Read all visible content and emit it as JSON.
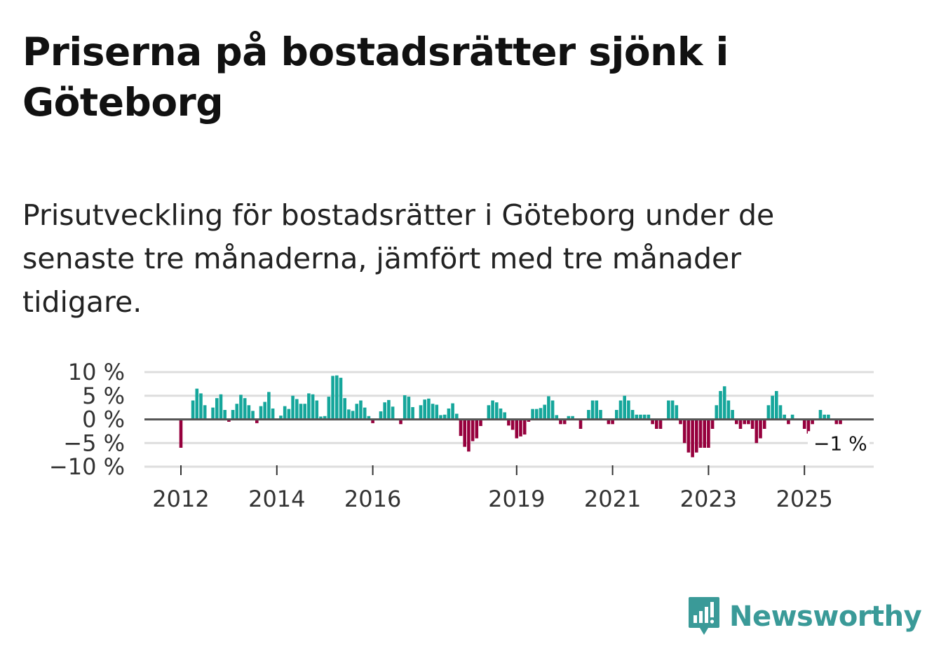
{
  "header": {
    "title": "Priserna på bostadsrätter sjönk i Göteborg",
    "subtitle": "Prisutveckling för bostadsrätter i Göteborg under de senaste tre månaderna, jämfört med tre månader tidigare."
  },
  "colors": {
    "positive": "#15a69b",
    "negative": "#96003d",
    "grid": "#dddddd",
    "zero": "#555555"
  },
  "chart_data": {
    "type": "bar",
    "title": "Priserna på bostadsrätter sjönk i Göteborg",
    "xlabel": "",
    "ylabel": "",
    "ylim": [
      -10,
      10
    ],
    "y_ticks": [
      10,
      5,
      0,
      -5,
      -10
    ],
    "y_tick_labels": [
      "10 %",
      "5 %",
      "0 %",
      "−5 %",
      "−10 %"
    ],
    "x_tick_labels": [
      "2012",
      "2014",
      "2016",
      "2019",
      "2021",
      "2023",
      "2025"
    ],
    "x_tick_index": [
      0,
      24,
      48,
      84,
      108,
      132,
      156
    ],
    "start": "2012-01",
    "last_label": "−1 %",
    "values": [
      -6,
      0,
      0,
      4,
      6.5,
      5.5,
      3,
      0,
      2.5,
      4.5,
      5.3,
      2,
      -0.5,
      2,
      3.3,
      5.2,
      4.5,
      3,
      1.8,
      -0.8,
      2.8,
      3.7,
      5.8,
      2.3,
      0,
      0.8,
      2.8,
      2.2,
      5,
      4.3,
      3.3,
      3.3,
      5.5,
      5.3,
      4,
      0.6,
      0.7,
      4.8,
      9.2,
      9.3,
      8.8,
      4.5,
      2.1,
      1.8,
      3.3,
      4,
      2.5,
      0.7,
      -0.8,
      0,
      1.7,
      3.6,
      4.1,
      2.7,
      0,
      -1,
      5.1,
      4.8,
      2.6,
      0,
      3,
      4.2,
      4.4,
      3.3,
      3.1,
      0.9,
      1,
      2.3,
      3.4,
      1.2,
      -3.5,
      -5.8,
      -6.8,
      -4.6,
      -4,
      -1.4,
      0,
      3,
      4,
      3.6,
      2.3,
      1.5,
      -1.3,
      -2.2,
      -4,
      -3.6,
      -3.2,
      -0.5,
      2.2,
      2.2,
      2.4,
      3.1,
      4.9,
      4,
      0.9,
      -1,
      -1,
      0.7,
      0.7,
      0,
      -2,
      0,
      2,
      4,
      4,
      2,
      0,
      -1,
      -1,
      2,
      4,
      5,
      4,
      2,
      1,
      1,
      1,
      1,
      -1,
      -2,
      -2,
      0,
      4,
      4,
      3,
      -1,
      -5,
      -7,
      -8,
      -7,
      -6,
      -6,
      -6,
      -2,
      3,
      6,
      7,
      4,
      2,
      -1,
      -2,
      -1,
      -1,
      -2,
      -5,
      -4,
      -2,
      3,
      5,
      6,
      3,
      1,
      -1,
      1,
      0,
      0,
      -2,
      -3,
      -1,
      0,
      2,
      1,
      1,
      0,
      -1,
      -1
    ]
  },
  "brand": {
    "name": "Newsworthy"
  }
}
